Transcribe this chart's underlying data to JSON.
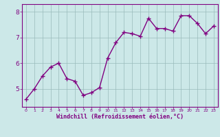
{
  "x": [
    0,
    1,
    2,
    3,
    4,
    5,
    6,
    7,
    8,
    9,
    10,
    11,
    12,
    13,
    14,
    15,
    16,
    17,
    18,
    19,
    20,
    21,
    22,
    23
  ],
  "y": [
    4.6,
    5.0,
    5.5,
    5.85,
    6.0,
    5.4,
    5.3,
    4.75,
    4.85,
    5.05,
    6.2,
    6.8,
    7.2,
    7.15,
    7.05,
    7.75,
    7.35,
    7.35,
    7.25,
    7.85,
    7.85,
    7.55,
    7.15,
    7.45
  ],
  "line_color": "#800080",
  "bg_color": "#cce8e8",
  "grid_color": "#99bbbb",
  "xlabel": "Windchill (Refroidissement éolien,°C)",
  "xlim": [
    -0.5,
    23.5
  ],
  "ylim": [
    4.3,
    8.3
  ],
  "yticks": [
    5,
    6,
    7,
    8
  ],
  "xticks": [
    0,
    1,
    2,
    3,
    4,
    5,
    6,
    7,
    8,
    9,
    10,
    11,
    12,
    13,
    14,
    15,
    16,
    17,
    18,
    19,
    20,
    21,
    22,
    23
  ],
  "marker": "+",
  "linewidth": 1.0,
  "markersize": 4,
  "markeredgewidth": 1.0,
  "xlabel_color": "#800080",
  "tick_color": "#800080",
  "spine_color": "#800080",
  "xlabel_fontsize": 6.0,
  "xtick_fontsize": 4.5,
  "ytick_fontsize": 6.5
}
